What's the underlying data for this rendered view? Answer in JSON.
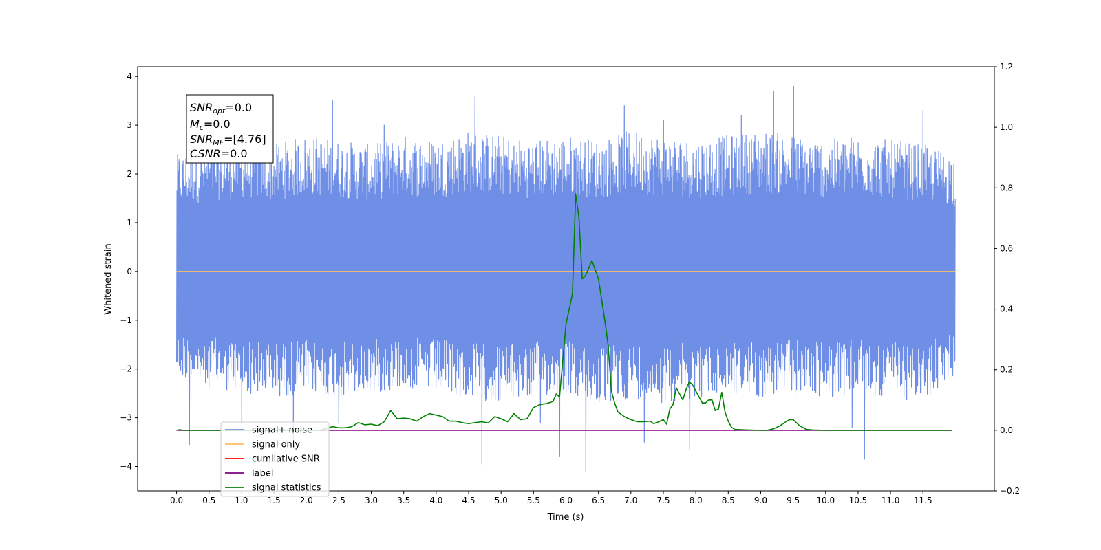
{
  "chart_data": {
    "type": "line",
    "xlabel": "Time (s)",
    "ylabel": "Whitened strain",
    "xlim": [
      -0.6,
      12.6
    ],
    "ylim": [
      -4.5,
      4.2
    ],
    "y2lim": [
      -0.2,
      1.2
    ],
    "x_ticks": [
      "0.0",
      "0.5",
      "1.0",
      "1.5",
      "2.0",
      "2.5",
      "3.0",
      "3.5",
      "4.0",
      "4.5",
      "5.0",
      "5.5",
      "6.0",
      "6.5",
      "7.0",
      "7.5",
      "8.0",
      "8.5",
      "9.0",
      "9.5",
      "10.0",
      "10.5",
      "11.0",
      "11.5"
    ],
    "y_ticks": [
      "4",
      "3",
      "2",
      "1",
      "0",
      "−1",
      "−2",
      "−3",
      "−4"
    ],
    "y2_ticks": [
      "1.2",
      "1.0",
      "0.8",
      "0.6",
      "0.4",
      "0.2",
      "0.0",
      "−0.2"
    ],
    "grid": false,
    "legend_position": "lower-left",
    "info_box": {
      "snr_opt_main": "SNR",
      "snr_opt_sub": "opt",
      "snr_opt_value": "=0.0",
      "mc_main": "M",
      "mc_sub": "c",
      "mc_value": "=0.0",
      "snr_mf_main": "SNR",
      "snr_mf_sub": "MF",
      "snr_mf_value": "=[4.76]",
      "csnr_main": "CSNR",
      "csnr_value": "=0.0"
    },
    "series": [
      {
        "name": "signal+ noise",
        "color": "#6f8fe6",
        "axis": "left",
        "x_range": [
          0.0,
          12.0
        ],
        "envelope_x": [
          0.0,
          0.5,
          1.0,
          1.5,
          2.0,
          2.5,
          3.0,
          3.5,
          4.0,
          4.5,
          5.0,
          5.5,
          6.0,
          6.5,
          7.0,
          7.5,
          8.0,
          8.5,
          9.0,
          9.5,
          10.0,
          10.5,
          11.0,
          11.5,
          12.0
        ],
        "envelope_min": [
          -2.2,
          -2.4,
          -2.5,
          -2.6,
          -2.5,
          -2.6,
          -2.5,
          -2.4,
          -2.5,
          -2.6,
          -2.7,
          -2.6,
          -2.5,
          -2.8,
          -2.6,
          -2.7,
          -2.6,
          -2.5,
          -2.6,
          -2.5,
          -2.6,
          -2.5,
          -2.6,
          -2.7,
          -2.1
        ],
        "envelope_max": [
          2.4,
          2.6,
          2.7,
          2.6,
          2.8,
          2.7,
          2.6,
          2.8,
          2.7,
          2.9,
          2.8,
          2.7,
          2.8,
          2.7,
          2.9,
          2.8,
          2.7,
          2.8,
          2.9,
          2.8,
          2.7,
          2.8,
          2.7,
          2.6,
          2.4
        ],
        "spikes_x": [
          0.2,
          1.0,
          1.8,
          2.4,
          2.5,
          3.2,
          4.6,
          4.7,
          5.6,
          5.9,
          6.3,
          6.9,
          7.2,
          7.5,
          7.9,
          8.7,
          9.2,
          9.5,
          10.4,
          10.6,
          11.5
        ],
        "spikes_y": [
          -3.55,
          -3.3,
          -3.5,
          3.5,
          -3.1,
          3.0,
          3.6,
          -3.95,
          -3.1,
          -3.8,
          -4.1,
          3.4,
          -3.5,
          3.1,
          -3.65,
          3.2,
          3.7,
          3.8,
          -3.2,
          -3.85,
          3.3
        ]
      },
      {
        "name": "signal only",
        "color": "#ffbf5f",
        "axis": "left",
        "x": [
          0.0,
          12.0
        ],
        "y": [
          0.0,
          0.0
        ]
      },
      {
        "name": "cumilative SNR",
        "color": "#ff0000",
        "axis": "right",
        "x": [],
        "y": []
      },
      {
        "name": "label",
        "color": "#800080",
        "axis": "right",
        "x": [
          0.0,
          11.95
        ],
        "y": [
          0.0,
          0.0
        ]
      },
      {
        "name": "signal statistics",
        "color": "#008000",
        "axis": "right",
        "x": [
          0.0,
          0.05,
          0.1,
          2.2,
          2.3,
          2.4,
          2.5,
          2.6,
          2.7,
          2.8,
          2.9,
          3.0,
          3.1,
          3.2,
          3.3,
          3.4,
          3.5,
          3.6,
          3.7,
          3.8,
          3.9,
          4.0,
          4.1,
          4.2,
          4.3,
          4.4,
          4.5,
          4.6,
          4.7,
          4.8,
          4.9,
          5.0,
          5.1,
          5.2,
          5.3,
          5.4,
          5.5,
          5.6,
          5.7,
          5.8,
          5.85,
          5.9,
          6.0,
          6.1,
          6.15,
          6.2,
          6.25,
          6.3,
          6.4,
          6.5,
          6.55,
          6.6,
          6.65,
          6.7,
          6.75,
          6.8,
          6.9,
          7.0,
          7.1,
          7.2,
          7.3,
          7.35,
          7.4,
          7.45,
          7.5,
          7.55,
          7.6,
          7.65,
          7.7,
          7.75,
          7.8,
          7.85,
          7.9,
          7.95,
          8.0,
          8.05,
          8.1,
          8.15,
          8.2,
          8.25,
          8.3,
          8.35,
          8.4,
          8.45,
          8.5,
          8.55,
          8.6,
          8.7,
          8.8,
          9.0,
          9.1,
          9.2,
          9.3,
          9.4,
          9.45,
          9.5,
          9.55,
          9.6,
          9.7,
          9.8,
          10.0,
          11.95
        ],
        "y": [
          0.0,
          0.002,
          0.0,
          0.0,
          0.005,
          0.012,
          0.008,
          0.008,
          0.012,
          0.025,
          0.018,
          0.02,
          0.015,
          0.028,
          0.065,
          0.038,
          0.04,
          0.038,
          0.03,
          0.045,
          0.055,
          0.05,
          0.045,
          0.03,
          0.03,
          0.025,
          0.022,
          0.025,
          0.028,
          0.024,
          0.045,
          0.038,
          0.028,
          0.055,
          0.035,
          0.038,
          0.075,
          0.085,
          0.088,
          0.095,
          0.12,
          0.11,
          0.35,
          0.45,
          0.78,
          0.7,
          0.5,
          0.51,
          0.56,
          0.5,
          0.43,
          0.36,
          0.28,
          0.13,
          0.09,
          0.06,
          0.045,
          0.035,
          0.028,
          0.028,
          0.03,
          0.022,
          0.025,
          0.03,
          0.035,
          0.02,
          0.07,
          0.085,
          0.14,
          0.12,
          0.1,
          0.135,
          0.16,
          0.15,
          0.13,
          0.11,
          0.09,
          0.09,
          0.1,
          0.1,
          0.065,
          0.07,
          0.125,
          0.06,
          0.03,
          0.01,
          0.003,
          0.002,
          0.001,
          0.0,
          0.0,
          0.005,
          0.015,
          0.03,
          0.035,
          0.035,
          0.025,
          0.015,
          0.003,
          0.001,
          0.0,
          0.0
        ]
      }
    ]
  }
}
